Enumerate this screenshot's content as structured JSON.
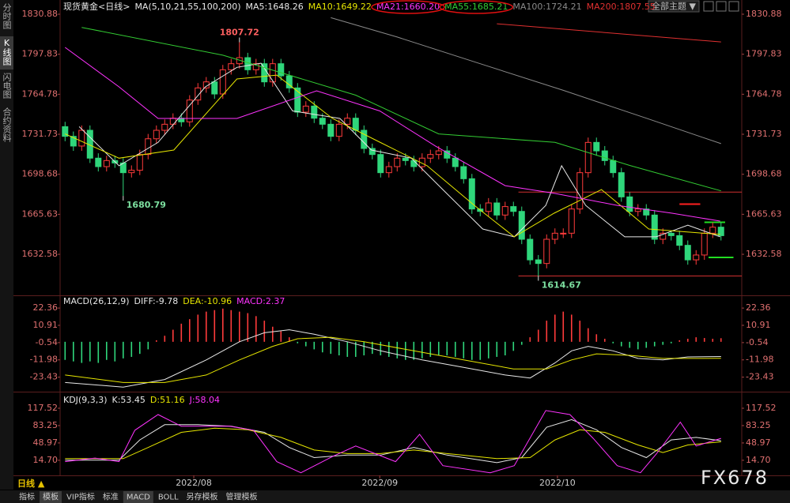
{
  "sidebar": [
    "分时图",
    "K线图",
    "闪电图",
    "合约资料"
  ],
  "toolbar": "全部主题 ▼",
  "period": "日线 ▲",
  "tabs": [
    "指标",
    "模板",
    "VIP指标",
    "标准",
    "MACD",
    "BOLL",
    "另存模板",
    "管理模板"
  ],
  "watermark": "FX678",
  "chart_data": [
    {
      "type": "candlestick",
      "title": "现货黄金<日线>",
      "subtitle": "MA(5,10,21,55,100,200)",
      "xlim": [
        -0.6,
        81.5
      ],
      "ylim": [
        1600,
        1830.88
      ],
      "yticks": [
        1830.88,
        1797.83,
        1764.78,
        1731.73,
        1698.68,
        1665.63,
        1632.58
      ],
      "up_color": "#ff3b3b",
      "down_color": "#2fd67b",
      "open": [
        1738,
        1730,
        1722,
        1735,
        1712,
        1705,
        1710,
        1708,
        1700,
        1702,
        1715,
        1728,
        1735,
        1740,
        1745,
        1742,
        1760,
        1770,
        1775,
        1765,
        1785,
        1790,
        1795,
        1785,
        1790,
        1775,
        1790,
        1780,
        1770,
        1750,
        1755,
        1745,
        1740,
        1730,
        1740,
        1745,
        1735,
        1720,
        1715,
        1700,
        1705,
        1712,
        1710,
        1705,
        1712,
        1715,
        1718,
        1712,
        1705,
        1695,
        1670,
        1668,
        1675,
        1665,
        1672,
        1668,
        1645,
        1628,
        1625,
        1645,
        1650,
        1650,
        1670,
        1700,
        1725,
        1718,
        1710,
        1700,
        1680,
        1668,
        1670,
        1665,
        1645,
        1650,
        1648,
        1640,
        1628,
        1632,
        1650,
        1655
      ],
      "high": [
        1742,
        1734,
        1739,
        1739,
        1716,
        1714,
        1714,
        1712,
        1706,
        1719,
        1732,
        1739,
        1744,
        1749,
        1749,
        1764,
        1774,
        1779,
        1779,
        1789,
        1794,
        1807.72,
        1799,
        1794,
        1794,
        1794,
        1794,
        1784,
        1774,
        1759,
        1759,
        1749,
        1744,
        1744,
        1749,
        1749,
        1739,
        1724,
        1719,
        1709,
        1716,
        1716,
        1714,
        1716,
        1719,
        1722,
        1722,
        1716,
        1709,
        1699,
        1674,
        1679,
        1679,
        1676,
        1676,
        1672,
        1649,
        1632,
        1649,
        1654,
        1654,
        1674,
        1704,
        1729,
        1729,
        1722,
        1714,
        1704,
        1684,
        1674,
        1674,
        1669,
        1654,
        1652,
        1652,
        1644,
        1636,
        1654,
        1659,
        1659
      ],
      "low": [
        1726,
        1718,
        1718,
        1708,
        1701,
        1701,
        1704,
        1680.79,
        1696,
        1698,
        1711,
        1724,
        1731,
        1736,
        1738,
        1738,
        1756,
        1766,
        1761,
        1761,
        1781,
        1786,
        1781,
        1781,
        1771,
        1771,
        1776,
        1766,
        1746,
        1746,
        1741,
        1736,
        1726,
        1726,
        1736,
        1731,
        1716,
        1711,
        1696,
        1696,
        1701,
        1706,
        1701,
        1701,
        1708,
        1711,
        1708,
        1701,
        1691,
        1666,
        1664,
        1664,
        1661,
        1661,
        1664,
        1641,
        1624,
        1614.67,
        1621,
        1641,
        1646,
        1646,
        1666,
        1696,
        1714,
        1706,
        1696,
        1676,
        1664,
        1664,
        1661,
        1641,
        1641,
        1644,
        1636,
        1624,
        1624,
        1628,
        1646,
        1644
      ],
      "close": [
        1730,
        1722,
        1735,
        1712,
        1705,
        1710,
        1708,
        1700,
        1702,
        1715,
        1728,
        1735,
        1740,
        1745,
        1742,
        1760,
        1770,
        1775,
        1765,
        1785,
        1790,
        1795,
        1785,
        1790,
        1775,
        1790,
        1780,
        1770,
        1750,
        1755,
        1745,
        1740,
        1730,
        1740,
        1745,
        1735,
        1720,
        1715,
        1700,
        1705,
        1712,
        1710,
        1705,
        1712,
        1715,
        1718,
        1712,
        1705,
        1695,
        1670,
        1668,
        1675,
        1665,
        1672,
        1668,
        1645,
        1628,
        1625,
        1645,
        1650,
        1650,
        1670,
        1700,
        1725,
        1718,
        1710,
        1700,
        1680,
        1668,
        1670,
        1665,
        1645,
        1650,
        1648,
        1640,
        1628,
        1632,
        1650,
        1655,
        1648
      ],
      "series": [
        {
          "name": "MA5:1648.26",
          "color": "#e8e8e8",
          "x": [
            1.7,
            6.5,
            11.2,
            16.9,
            20.7,
            23.6,
            27.4,
            33.1,
            36.9,
            41.7,
            45.5,
            50.3,
            54.1,
            57.9,
            59.8,
            62.7,
            67.4,
            71.2,
            75,
            78.9
          ],
          "values": [
            1738,
            1705.7,
            1725,
            1770.9,
            1787,
            1790.4,
            1751,
            1744.8,
            1718.7,
            1712,
            1686,
            1653.5,
            1647,
            1673,
            1705.7,
            1673,
            1647,
            1647,
            1656.7,
            1647
          ]
        },
        {
          "name": "MA10:1649.22",
          "color": "#e6e600",
          "x": [
            0,
            6.5,
            13.1,
            20.7,
            25.5,
            32.2,
            37.9,
            43.6,
            49.3,
            54.1,
            58.9,
            64.6,
            70.3,
            78.9
          ],
          "values": [
            1732,
            1712,
            1718.7,
            1777.4,
            1780.6,
            1744.8,
            1725.2,
            1705.7,
            1673,
            1647,
            1666.5,
            1686,
            1653.5,
            1649
          ]
        },
        {
          "name": "MA21:1660.20",
          "color": "#ff33ff",
          "circled": true,
          "x": [
            0,
            6.5,
            11.2,
            20.7,
            30.3,
            37.9,
            44.6,
            53,
            58.9,
            66.5,
            73.1,
            78.9
          ],
          "values": [
            1803.5,
            1770.9,
            1744.8,
            1744.8,
            1767.6,
            1751,
            1722,
            1689.3,
            1683,
            1673,
            1666.5,
            1660
          ]
        },
        {
          "name": "MA55:1685.21",
          "color": "#33cc33",
          "circled": true,
          "x": [
            2,
            19,
            35,
            45,
            59,
            68,
            79
          ],
          "values": [
            1820,
            1797,
            1764,
            1732,
            1725,
            1706,
            1685
          ]
        },
        {
          "name": "MA100:1724.21",
          "color": "#8a8a8a",
          "x": [
            32,
            40,
            50,
            60,
            70,
            79
          ],
          "values": [
            1828,
            1812,
            1790,
            1768,
            1745,
            1724
          ]
        },
        {
          "name": "MA200:1807.55",
          "color": "#e03030",
          "x": [
            52,
            79
          ],
          "values": [
            1823,
            1808
          ]
        }
      ],
      "annotations": [
        {
          "x": 21,
          "value": 1807.72,
          "color": "#ff6060"
        },
        {
          "x": 7,
          "value": 1680.79,
          "color": "#7de0a0"
        },
        {
          "x": 57,
          "value": 1614.67,
          "color": "#7de0a0"
        }
      ],
      "lines": [
        {
          "value": 1684,
          "x": [
            54.6,
            81.5
          ],
          "color": "#d03030"
        },
        {
          "value": 1614.67,
          "x": [
            54.6,
            81.5
          ],
          "color": "#d03030"
        },
        {
          "value": 1674,
          "x": [
            74,
            76.5
          ],
          "color": "#ff2020"
        },
        {
          "value": 1659,
          "x": [
            77,
            79.5
          ],
          "color": "#22dd22"
        },
        {
          "value": 1630,
          "x": [
            77.5,
            80.5
          ],
          "color": "#22dd22"
        }
      ]
    },
    {
      "type": "macd",
      "title": "MACD(26,12,9)",
      "xlim": [
        -0.6,
        81.5
      ],
      "ylim": [
        -32,
        28.7
      ],
      "yticks": [
        22.36,
        10.91,
        -0.54,
        -11.98,
        -23.43
      ],
      "bars": {
        "name": "MACD:2.37",
        "color": "#ff33ff",
        "up_color": "#ff3b3b",
        "down_color": "#2fd67b",
        "values": [
          -12,
          -13,
          -14,
          -13,
          -14,
          -12,
          -13,
          -11,
          -10,
          -8,
          -5,
          1,
          4,
          8,
          12,
          15,
          18,
          20,
          21,
          22,
          21,
          20,
          19,
          17,
          14,
          10,
          7,
          3,
          -1,
          -3,
          -5,
          -7,
          -8,
          -9,
          -10,
          -10,
          -9,
          -8,
          -9,
          -10,
          -11,
          -12,
          -12,
          -11,
          -10,
          -9,
          -9,
          -10,
          -11,
          -12,
          -12,
          -11,
          -10,
          -9,
          -6,
          -2,
          3,
          8,
          14,
          18,
          20,
          18,
          14,
          9,
          5,
          2,
          -1,
          -3,
          -4,
          -5,
          -4,
          -3,
          -2,
          -1,
          1,
          2,
          3,
          2.5,
          2,
          2.37
        ]
      },
      "series": [
        {
          "name": "DIFF:-9.78",
          "color": "#e8e8e8",
          "x": [
            0,
            7,
            12,
            17,
            21,
            24,
            27,
            30,
            34,
            38,
            43,
            48,
            53,
            56,
            59,
            61,
            63,
            66,
            69,
            72,
            75,
            79
          ],
          "values": [
            -27,
            -30,
            -25,
            -12,
            0,
            6,
            8,
            5,
            0,
            -6,
            -12,
            -17,
            -22,
            -24,
            -14,
            -6,
            -3,
            -6,
            -11,
            -12,
            -10,
            -9.78
          ]
        },
        {
          "name": "DEA:-10.96",
          "color": "#e6e600",
          "x": [
            0,
            7,
            12,
            17,
            21,
            25,
            28,
            32,
            36,
            42,
            48,
            54,
            58,
            61,
            64,
            68,
            72,
            76,
            79
          ],
          "values": [
            -22,
            -27,
            -27,
            -22,
            -12,
            -3,
            2,
            3,
            0,
            -6,
            -12,
            -18,
            -18,
            -12,
            -8,
            -9,
            -11,
            -11,
            -10.96
          ]
        }
      ]
    },
    {
      "type": "kdj",
      "title": "KDJ(9,3,3)",
      "xlim": [
        -0.6,
        81.5
      ],
      "ylim": [
        -12,
        134.7
      ],
      "yticks": [
        117.52,
        83.25,
        48.97,
        {
          "value": 14.7,
          "label": "14.70"
        }
      ],
      "xticks": [
        {
          "value": 15.5,
          "label": "2022/08"
        },
        {
          "value": 37.9,
          "label": "2022/09"
        },
        {
          "value": 59.3,
          "label": "2022/10"
        }
      ],
      "series": [
        {
          "name": "K:53.45",
          "color": "#e8e8e8",
          "x": [
            0,
            6.5,
            9,
            12,
            16,
            20,
            24,
            27,
            30,
            34,
            38,
            42,
            46,
            52,
            55,
            58,
            61,
            64,
            67,
            70,
            73,
            76,
            79
          ],
          "values": [
            15,
            15,
            55,
            85,
            85,
            82,
            70,
            40,
            20,
            25,
            25,
            40,
            25,
            10,
            20,
            80,
            95,
            75,
            40,
            20,
            55,
            60,
            53.45
          ]
        },
        {
          "name": "D:51.16",
          "color": "#e6e600",
          "x": [
            0,
            7,
            10,
            14,
            18,
            22,
            26,
            30,
            34,
            38,
            42,
            46,
            52,
            56,
            59,
            62,
            65,
            69,
            72,
            75,
            79
          ],
          "values": [
            18,
            18,
            40,
            70,
            78,
            75,
            60,
            35,
            28,
            28,
            35,
            28,
            18,
            20,
            55,
            75,
            70,
            45,
            30,
            45,
            51.16
          ]
        },
        {
          "name": "J:58.04",
          "color": "#ff33ff",
          "x": [
            0,
            3.6,
            6.5,
            8.4,
            11.2,
            14,
            16.9,
            19.8,
            22.7,
            25.5,
            28.4,
            32.2,
            35,
            39.8,
            42.7,
            45.5,
            51.2,
            54.1,
            57.9,
            60.8,
            63.6,
            66.5,
            69.3,
            71.2,
            74.1,
            76,
            79
          ],
          "values": [
            12,
            19,
            12,
            74,
            105,
            82,
            82,
            82,
            74,
            12,
            -10,
            22,
            43,
            12,
            66,
            4,
            -10,
            4,
            113,
            105,
            58,
            4,
            -10,
            27,
            90,
            43,
            58.04
          ]
        }
      ]
    }
  ]
}
